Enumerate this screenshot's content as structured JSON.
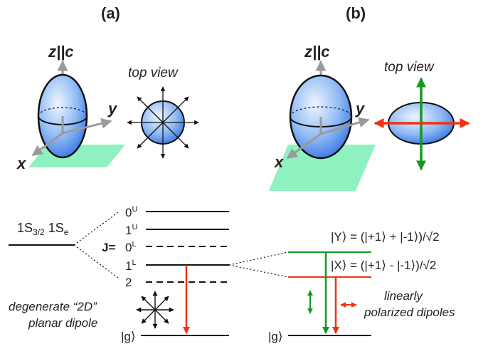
{
  "panels": {
    "a": {
      "label": "(a)",
      "axis_z": "z||c",
      "axis_y": "y",
      "axis_x": "x",
      "top_view": "top view"
    },
    "b": {
      "label": "(b)",
      "axis_z": "z||c",
      "axis_y": "y",
      "axis_x": "x",
      "top_view": "top view"
    }
  },
  "energy": {
    "left_state_main": "1S",
    "left_state_sub1": "3/2",
    "left_state_mid": " 1S",
    "left_state_sub2": "e",
    "j_label": "J=",
    "levels": [
      {
        "base": "0",
        "sup": "U",
        "style": "solid"
      },
      {
        "base": "1",
        "sup": "U",
        "style": "solid"
      },
      {
        "base": "0",
        "sup": "L",
        "style": "dashed"
      },
      {
        "base": "1",
        "sup": "L",
        "style": "solid"
      },
      {
        "base": "2",
        "sup": "",
        "style": "dashed"
      }
    ],
    "ground_left": "|g⟩",
    "ground_right": "|g⟩",
    "state_Y": "|Y⟩ = (|+1⟩ + |-1⟩)/√2",
    "state_X": "|X⟩ = (|+1⟩ - |-1⟩)/√2",
    "degenerate_line1": "degenerate “2D”",
    "degenerate_line2": "planar dipole",
    "linear_line1": "linearly",
    "linear_line2": "polarized dipoles"
  },
  "colors": {
    "ellipsoid_light": "#eef5ff",
    "ellipsoid_dark": "#2a6ae0",
    "plane": "#8ff0c0",
    "red_arrow": "#ee3311",
    "green_arrow": "#119922",
    "axis_gray": "#9a9a9a"
  },
  "icons": [
    "star-arrows-icon",
    "transition-arrow-icon"
  ]
}
